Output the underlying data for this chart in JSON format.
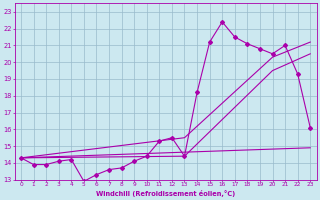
{
  "xlabel": "Windchill (Refroidissement éolien,°C)",
  "bg_color": "#cce8f0",
  "line_color": "#aa00aa",
  "grid_color": "#99bbcc",
  "xlim": [
    -0.5,
    23.5
  ],
  "ylim": [
    13.0,
    23.5
  ],
  "xticks": [
    0,
    1,
    2,
    3,
    4,
    5,
    6,
    7,
    8,
    9,
    10,
    11,
    12,
    13,
    14,
    15,
    16,
    17,
    18,
    19,
    20,
    21,
    22,
    23
  ],
  "yticks": [
    13,
    14,
    15,
    16,
    17,
    18,
    19,
    20,
    21,
    22,
    23
  ],
  "line_main": {
    "x": [
      0,
      1,
      2,
      3,
      4,
      5,
      6,
      7,
      8,
      9,
      10,
      11,
      12,
      13,
      14,
      15,
      16,
      17,
      18,
      19,
      20,
      21,
      22,
      23
    ],
    "y": [
      14.3,
      13.9,
      13.9,
      14.1,
      14.2,
      12.9,
      13.3,
      13.6,
      13.7,
      14.1,
      14.4,
      15.3,
      15.5,
      14.4,
      18.2,
      21.2,
      22.4,
      21.5,
      21.1,
      20.8,
      20.5,
      21.0,
      19.3,
      16.1
    ]
  },
  "line_flat": {
    "x": [
      0,
      23
    ],
    "y": [
      14.3,
      14.9
    ]
  },
  "line_diag1": {
    "x": [
      0,
      13,
      20,
      23
    ],
    "y": [
      14.3,
      14.4,
      19.5,
      20.5
    ]
  },
  "line_diag2": {
    "x": [
      0,
      13,
      20,
      23
    ],
    "y": [
      14.3,
      15.5,
      20.3,
      21.2
    ]
  }
}
